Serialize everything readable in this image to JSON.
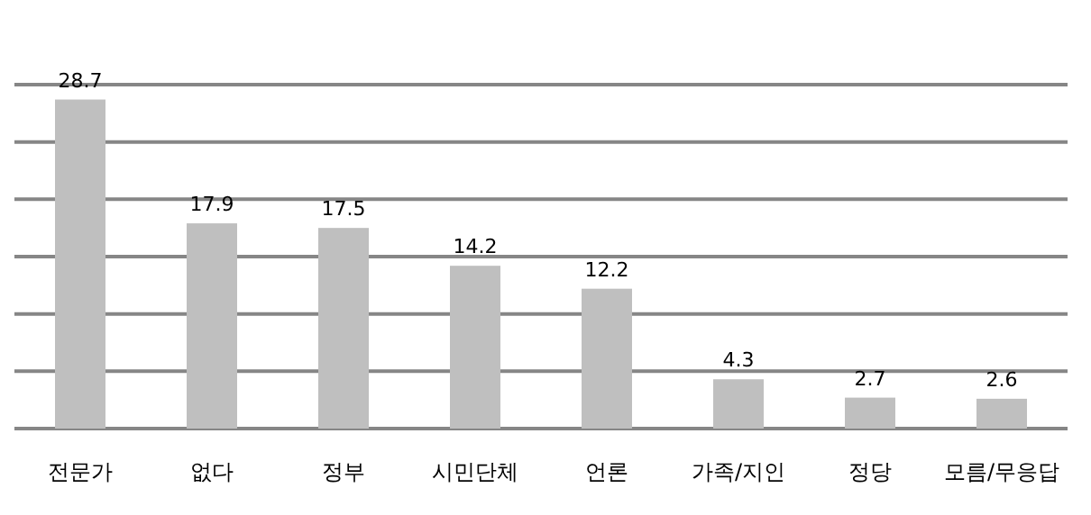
{
  "chart_data": {
    "type": "bar",
    "categories": [
      "전문가",
      "없다",
      "정부",
      "시민단체",
      "언론",
      "가족/지인",
      "정당",
      "모름/무응답"
    ],
    "values": [
      28.7,
      17.9,
      17.5,
      14.2,
      12.2,
      4.3,
      2.7,
      2.6
    ],
    "color": "#bfbfbf",
    "ylim": [
      0,
      30
    ],
    "yticks": [
      {
        "value": 0,
        "label": null
      },
      {
        "value": 5,
        "label": null
      },
      {
        "value": 10,
        "label": null
      },
      {
        "value": 15,
        "label": null
      },
      {
        "value": 20,
        "label": null
      },
      {
        "value": 25,
        "label": null
      },
      {
        "value": 30,
        "label": null
      }
    ],
    "tick_labels": "x",
    "grid": "y",
    "data_labels": true
  }
}
